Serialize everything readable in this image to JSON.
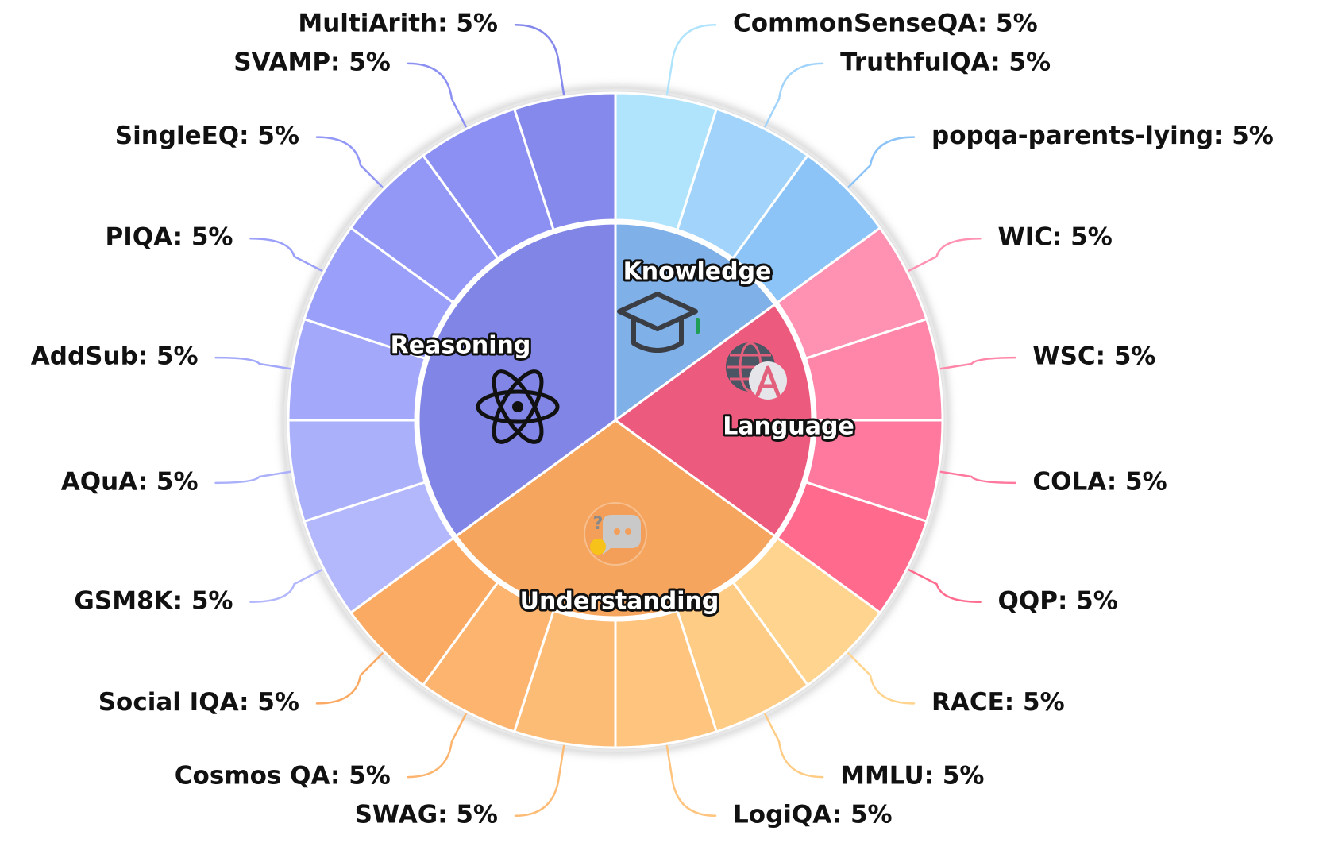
{
  "chart_data": {
    "type": "sunburst",
    "inner_ring": [
      {
        "name": "Knowledge",
        "value": 15,
        "color": "#7FB0E8",
        "icon": "graduation-cap-icon"
      },
      {
        "name": "Language",
        "value": 20,
        "color": "#EC5B7E",
        "icon": "globe-letter-a-icon"
      },
      {
        "name": "Understanding",
        "value": 30,
        "color": "#F5A55E",
        "icon": "question-chat-bubble-icon"
      },
      {
        "name": "Reasoning",
        "value": 35,
        "color": "#8185E6",
        "icon": "atom-icon"
      }
    ],
    "outer_ring": [
      {
        "name": "CommonSenseQA",
        "value": 5,
        "label": "CommonSenseQA: 5%",
        "category": "Knowledge",
        "color": "#B0E4FC"
      },
      {
        "name": "TruthfulQA",
        "value": 5,
        "label": "TruthfulQA: 5%",
        "category": "Knowledge",
        "color": "#A2D4FB"
      },
      {
        "name": "popqa-parents-lying",
        "value": 5,
        "label": "popqa-parents-lying: 5%",
        "category": "Knowledge",
        "color": "#8DC4F8"
      },
      {
        "name": "WIC",
        "value": 5,
        "label": "WIC: 5%",
        "category": "Language",
        "color": "#FF92B2"
      },
      {
        "name": "WSC",
        "value": 5,
        "label": "WSC: 5%",
        "category": "Language",
        "color": "#FF86A8"
      },
      {
        "name": "COLA",
        "value": 5,
        "label": "COLA: 5%",
        "category": "Language",
        "color": "#FF799E"
      },
      {
        "name": "QQP",
        "value": 5,
        "label": "QQP: 5%",
        "category": "Language",
        "color": "#FF6A8D"
      },
      {
        "name": "RACE",
        "value": 5,
        "label": "RACE: 5%",
        "category": "Understanding",
        "color": "#FFD48E"
      },
      {
        "name": "MMLU",
        "value": 5,
        "label": "MMLU: 5%",
        "category": "Understanding",
        "color": "#FFCC86"
      },
      {
        "name": "LogiQA",
        "value": 5,
        "label": "LogiQA: 5%",
        "category": "Understanding",
        "color": "#FFC47E"
      },
      {
        "name": "SWAG",
        "value": 5,
        "label": "SWAG: 5%",
        "category": "Understanding",
        "color": "#FDBC76"
      },
      {
        "name": "Cosmos QA",
        "value": 5,
        "label": "Cosmos QA: 5%",
        "category": "Understanding",
        "color": "#FCB46E"
      },
      {
        "name": "Social IQA",
        "value": 5,
        "label": "Social IQA: 5%",
        "category": "Understanding",
        "color": "#FBAA64"
      },
      {
        "name": "GSM8K",
        "value": 5,
        "label": "GSM8K: 5%",
        "category": "Reasoning",
        "color": "#B3B8FC"
      },
      {
        "name": "AQuA",
        "value": 5,
        "label": "AQuA: 5%",
        "category": "Reasoning",
        "color": "#ABB0FB"
      },
      {
        "name": "AddSub",
        "value": 5,
        "label": "AddSub: 5%",
        "category": "Reasoning",
        "color": "#A3A8FA"
      },
      {
        "name": "PIQA",
        "value": 5,
        "label": "PIQA: 5%",
        "category": "Reasoning",
        "color": "#9AA0F9"
      },
      {
        "name": "SingleEQ",
        "value": 5,
        "label": "SingleEQ: 5%",
        "category": "Reasoning",
        "color": "#9398F7"
      },
      {
        "name": "SVAMP",
        "value": 5,
        "label": "SVAMP: 5%",
        "category": "Reasoning",
        "color": "#8C90F2"
      },
      {
        "name": "MultiArith",
        "value": 5,
        "label": "MultiArith: 5%",
        "category": "Reasoning",
        "color": "#8589EC"
      }
    ],
    "title": "",
    "legend": "none"
  }
}
